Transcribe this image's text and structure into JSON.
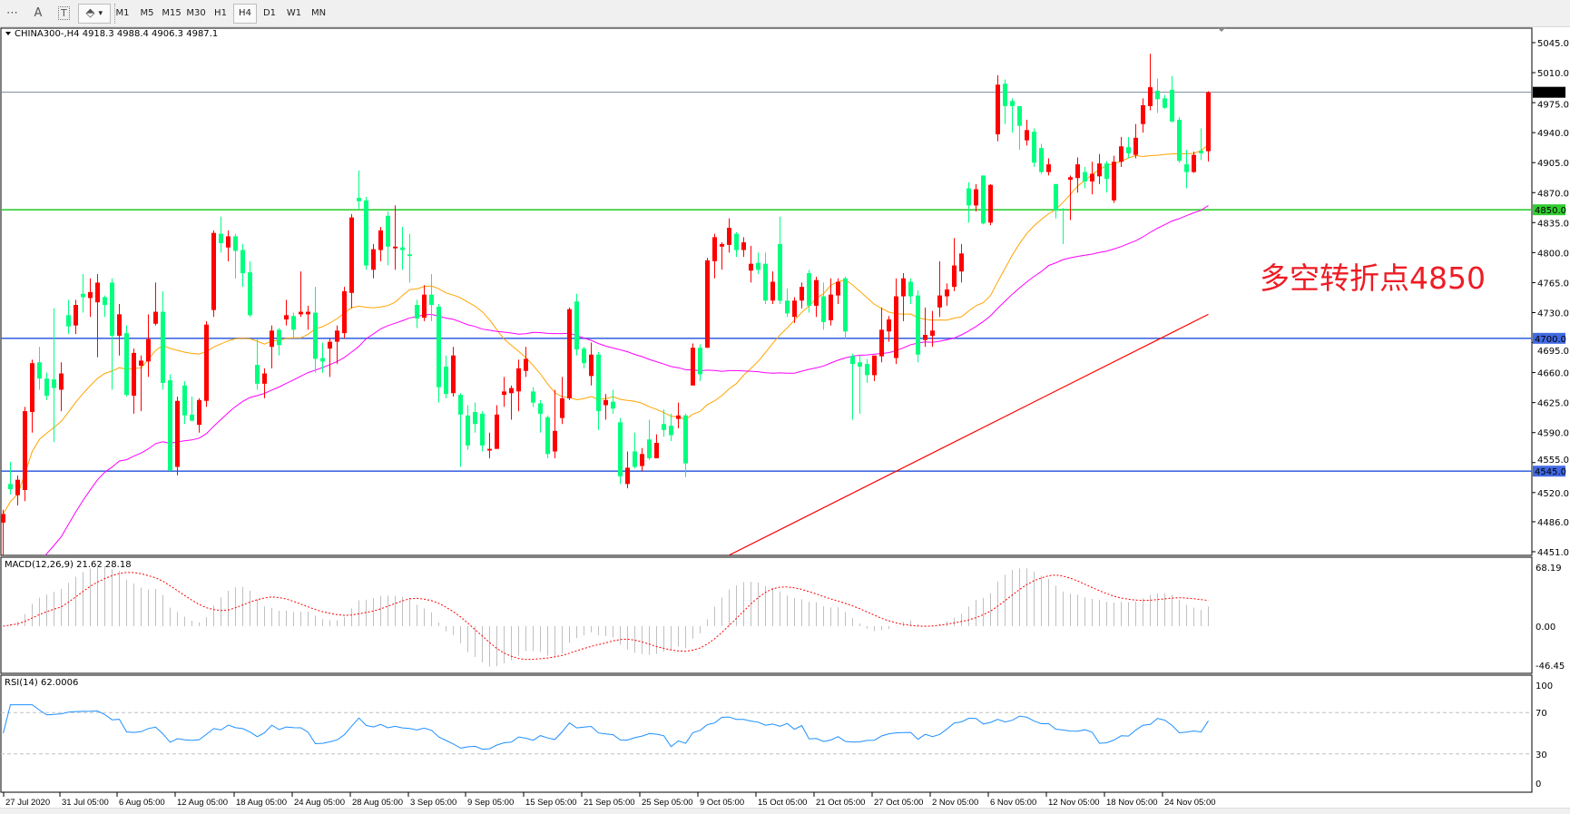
{
  "toolbar": {
    "tools": [
      {
        "icon": "grid-fibo-icon",
        "glyph": "⋯"
      },
      {
        "icon": "text-icon",
        "glyph": "A"
      },
      {
        "icon": "text-label-icon",
        "glyph": "T"
      },
      {
        "icon": "arrows-dropdown-icon",
        "glyph": "⬘"
      }
    ],
    "dropdown_glyph": "▾",
    "timeframes": [
      "M1",
      "M5",
      "M15",
      "M30",
      "H1",
      "H4",
      "D1",
      "W1",
      "MN"
    ],
    "active_timeframe": "H4"
  },
  "chart": {
    "header": "CHINA300-,H4  4918.3 4988.4 4906.3 4987.1",
    "macd_label": "MACD(12,26,9) 21.62 28.18",
    "rsi_label": "RSI(14) 62.0006",
    "annotation": "多空转折点4850"
  },
  "colors": {
    "bull": "#FF0000",
    "bear": "#00FF7F",
    "ma_fast": "#FFA500",
    "ma_mid": "#FF00FF",
    "ma_slow": "#FF0000",
    "rsi": "#1E90FF",
    "macd_hist": "#C0C0C0",
    "macd_signal": "#FF0000",
    "line_current": "#778899",
    "line_4850": "#32CD32",
    "line_blue": "#4169E1",
    "annotation": "#EE1C25"
  },
  "chart_data": {
    "type": "candlestick",
    "symbol": "CHINA300-",
    "timeframe": "H4",
    "price_axis_ticks": [
      5045.0,
      5010.0,
      4975.0,
      4940.0,
      4905.0,
      4870.0,
      4835.0,
      4800.0,
      4765.0,
      4730.0,
      4695.0,
      4660.0,
      4625.0,
      4590.0,
      4555.0,
      4520.0,
      4486.0,
      4451.0
    ],
    "price_range": [
      4451.0,
      5045.0
    ],
    "time_axis_labels": [
      "27 Jul 2020",
      "31 Jul 05:00",
      "6 Aug 05:00",
      "12 Aug 05:00",
      "18 Aug 05:00",
      "24 Aug 05:00",
      "28 Aug 05:00",
      "3 Sep 05:00",
      "9 Sep 05:00",
      "15 Sep 05:00",
      "21 Sep 05:00",
      "25 Sep 05:00",
      "9 Oct 05:00",
      "15 Oct 05:00",
      "21 Oct 05:00",
      "27 Oct 05:00",
      "2 Nov 05:00",
      "6 Nov 05:00",
      "12 Nov 05:00",
      "18 Nov 05:00",
      "24 Nov 05:00"
    ],
    "horizontal_lines": [
      {
        "price": 4987.1,
        "label": "4987.1",
        "color": "#778899",
        "label_bg": "#000000"
      },
      {
        "price": 4850.0,
        "label": "4850.0",
        "color": "#32CD32",
        "label_bg": "#32CD32"
      },
      {
        "price": 4700.0,
        "label": "4700.0",
        "color": "#4169E1",
        "label_bg": "#4169E1"
      },
      {
        "price": 4545.0,
        "label": "4545.0",
        "color": "#4169E1",
        "label_bg": "#4169E1"
      }
    ],
    "slow_ma_segment": {
      "from": [
        100,
        4447
      ],
      "to": [
        166,
        4728
      ]
    },
    "macd": {
      "params": "12,26,9",
      "main": 21.62,
      "signal": 28.18,
      "axis_ticks": [
        "68.19",
        "0.00",
        "-46.45"
      ],
      "range": [
        -46.45,
        68.19
      ]
    },
    "rsi": {
      "period": 14,
      "value": 62.0006,
      "axis_ticks": [
        "100",
        "70",
        "30",
        "0"
      ],
      "levels": [
        70,
        30
      ]
    },
    "ohlc": [
      [
        4485,
        4500,
        4440,
        4495
      ],
      [
        4530,
        4556,
        4518,
        4524
      ],
      [
        4517,
        4540,
        4505,
        4535
      ],
      [
        4523,
        4620,
        4510,
        4615
      ],
      [
        4614,
        4675,
        4590,
        4671
      ],
      [
        4672,
        4690,
        4640,
        4653
      ],
      [
        4653,
        4660,
        4628,
        4633
      ],
      [
        4652,
        4735,
        4579,
        4642
      ],
      [
        4640,
        4672,
        4615,
        4659
      ],
      [
        4727,
        4745,
        4705,
        4714
      ],
      [
        4715,
        4745,
        4705,
        4739
      ],
      [
        4752,
        4775,
        4730,
        4748
      ],
      [
        4747,
        4770,
        4725,
        4754
      ],
      [
        4742,
        4775,
        4678,
        4765
      ],
      [
        4748,
        4750,
        4725,
        4739
      ],
      [
        4765,
        4770,
        4640,
        4703
      ],
      [
        4703,
        4740,
        4680,
        4728
      ],
      [
        4706,
        4715,
        4632,
        4634
      ],
      [
        4633,
        4688,
        4612,
        4683
      ],
      [
        4668,
        4680,
        4615,
        4674
      ],
      [
        4673,
        4728,
        4655,
        4699
      ],
      [
        4717,
        4765,
        4715,
        4731
      ],
      [
        4731,
        4755,
        4640,
        4648
      ],
      [
        4651,
        4658,
        4545,
        4546
      ],
      [
        4550,
        4632,
        4540,
        4627
      ],
      [
        4645,
        4650,
        4600,
        4610
      ],
      [
        4611,
        4632,
        4603,
        4604
      ],
      [
        4599,
        4630,
        4590,
        4628
      ],
      [
        4627,
        4720,
        4620,
        4716
      ],
      [
        4733,
        4826,
        4725,
        4823
      ],
      [
        4822,
        4842,
        4800,
        4811
      ],
      [
        4806,
        4826,
        4790,
        4819
      ],
      [
        4819,
        4822,
        4770,
        4802
      ],
      [
        4803,
        4810,
        4760,
        4776
      ],
      [
        4777,
        4790,
        4725,
        4727
      ],
      [
        4669,
        4700,
        4640,
        4647
      ],
      [
        4647,
        4665,
        4630,
        4659
      ],
      [
        4690,
        4715,
        4665,
        4709
      ],
      [
        4710,
        4712,
        4680,
        4692
      ],
      [
        4722,
        4745,
        4715,
        4727
      ],
      [
        4726,
        4730,
        4700,
        4710
      ],
      [
        4728,
        4778,
        4725,
        4731
      ],
      [
        4728,
        4738,
        4710,
        4731
      ],
      [
        4730,
        4760,
        4660,
        4676
      ],
      [
        4677,
        4695,
        4660,
        4673
      ],
      [
        4688,
        4700,
        4655,
        4696
      ],
      [
        4696,
        4715,
        4670,
        4709
      ],
      [
        4706,
        4760,
        4700,
        4755
      ],
      [
        4753,
        4845,
        4735,
        4841
      ],
      [
        4864,
        4896,
        4850,
        4860
      ],
      [
        4861,
        4865,
        4780,
        4785
      ],
      [
        4780,
        4810,
        4770,
        4804
      ],
      [
        4803,
        4830,
        4790,
        4826
      ],
      [
        4843,
        4848,
        4785,
        4807
      ],
      [
        4805,
        4855,
        4780,
        4807
      ],
      [
        4806,
        4830,
        4780,
        4803
      ],
      [
        4798,
        4822,
        4765,
        4796
      ],
      [
        4739,
        4745,
        4712,
        4723
      ],
      [
        4724,
        4762,
        4720,
        4751
      ],
      [
        4751,
        4775,
        4720,
        4739
      ],
      [
        4737,
        4740,
        4625,
        4643
      ],
      [
        4667,
        4680,
        4630,
        4635
      ],
      [
        4636,
        4690,
        4632,
        4680
      ],
      [
        4634,
        4636,
        4550,
        4611
      ],
      [
        4610,
        4622,
        4570,
        4575
      ],
      [
        4614,
        4625,
        4590,
        4600
      ],
      [
        4612,
        4615,
        4568,
        4575
      ],
      [
        4569,
        4590,
        4560,
        4571
      ],
      [
        4571,
        4622,
        4571,
        4611
      ],
      [
        4634,
        4655,
        4620,
        4638
      ],
      [
        4636,
        4645,
        4605,
        4642
      ],
      [
        4638,
        4675,
        4615,
        4665
      ],
      [
        4662,
        4690,
        4655,
        4676
      ],
      [
        4638,
        4643,
        4620,
        4625
      ],
      [
        4624,
        4628,
        4590,
        4612
      ],
      [
        4608,
        4610,
        4560,
        4565
      ],
      [
        4568,
        4640,
        4560,
        4592
      ],
      [
        4607,
        4655,
        4600,
        4630
      ],
      [
        4630,
        4736,
        4628,
        4734
      ],
      [
        4743,
        4752,
        4680,
        4687
      ],
      [
        4688,
        4690,
        4665,
        4671
      ],
      [
        4656,
        4695,
        4645,
        4681
      ],
      [
        4681,
        4684,
        4593,
        4615
      ],
      [
        4622,
        4635,
        4605,
        4628
      ],
      [
        4626,
        4640,
        4612,
        4618
      ],
      [
        4602,
        4607,
        4530,
        4539
      ],
      [
        4530,
        4568,
        4525,
        4549
      ],
      [
        4568,
        4590,
        4548,
        4550
      ],
      [
        4551,
        4572,
        4545,
        4565
      ],
      [
        4582,
        4605,
        4558,
        4560
      ],
      [
        4560,
        4588,
        4560,
        4578
      ],
      [
        4600,
        4617,
        4585,
        4593
      ],
      [
        4598,
        4612,
        4580,
        4587
      ],
      [
        4606,
        4625,
        4595,
        4610
      ],
      [
        4610,
        4612,
        4538,
        4554
      ],
      [
        4645,
        4694,
        4645,
        4689
      ],
      [
        4689,
        4693,
        4650,
        4658
      ],
      [
        4689,
        4794,
        4689,
        4791
      ],
      [
        4790,
        4822,
        4770,
        4818
      ],
      [
        4807,
        4812,
        4780,
        4810
      ],
      [
        4809,
        4840,
        4800,
        4829
      ],
      [
        4822,
        4824,
        4795,
        4803
      ],
      [
        4803,
        4818,
        4795,
        4812
      ],
      [
        4779,
        4808,
        4765,
        4787
      ],
      [
        4788,
        4800,
        4775,
        4780
      ],
      [
        4787,
        4800,
        4740,
        4744
      ],
      [
        4744,
        4778,
        4740,
        4766
      ],
      [
        4810,
        4842,
        4740,
        4744
      ],
      [
        4744,
        4758,
        4725,
        4729
      ],
      [
        4725,
        4748,
        4718,
        4744
      ],
      [
        4744,
        4765,
        4735,
        4760
      ],
      [
        4776,
        4780,
        4730,
        4738
      ],
      [
        4738,
        4772,
        4725,
        4768
      ],
      [
        4749,
        4765,
        4710,
        4719
      ],
      [
        4721,
        4770,
        4715,
        4751
      ],
      [
        4750,
        4770,
        4740,
        4766
      ],
      [
        4770,
        4772,
        4700,
        4708
      ],
      [
        4679,
        4682,
        4605,
        4670
      ],
      [
        4672,
        4680,
        4612,
        4667
      ],
      [
        4670,
        4676,
        4648,
        4657
      ],
      [
        4657,
        4680,
        4650,
        4680
      ],
      [
        4679,
        4736,
        4672,
        4710
      ],
      [
        4708,
        4726,
        4696,
        4722
      ],
      [
        4677,
        4770,
        4670,
        4749
      ],
      [
        4749,
        4776,
        4720,
        4770
      ],
      [
        4766,
        4770,
        4740,
        4749
      ],
      [
        4750,
        4756,
        4672,
        4681
      ],
      [
        4698,
        4736,
        4690,
        4704
      ],
      [
        4703,
        4732,
        4690,
        4709
      ],
      [
        4736,
        4790,
        4725,
        4750
      ],
      [
        4749,
        4764,
        4738,
        4757
      ],
      [
        4760,
        4817,
        4755,
        4785
      ],
      [
        4778,
        4810,
        4765,
        4799
      ],
      [
        4875,
        4882,
        4835,
        4855
      ],
      [
        4855,
        4880,
        4848,
        4874
      ],
      [
        4890,
        4890,
        4833,
        4834
      ],
      [
        4835,
        4880,
        4832,
        4879
      ],
      [
        4938,
        5007,
        4930,
        4996
      ],
      [
        4997,
        5002,
        4950,
        4971
      ],
      [
        4977,
        4980,
        4940,
        4971
      ],
      [
        4971,
        4971,
        4920,
        4948
      ],
      [
        4931,
        4955,
        4925,
        4943
      ],
      [
        4941,
        4945,
        4900,
        4905
      ],
      [
        4922,
        4927,
        4892,
        4894
      ],
      [
        4894,
        4910,
        4890,
        4903
      ],
      [
        4880,
        4880,
        4840,
        4849
      ],
      [
        4851,
        4852,
        4810,
        4850
      ],
      [
        4885,
        4890,
        4838,
        4888
      ],
      [
        4887,
        4911,
        4870,
        4903
      ],
      [
        4894,
        4900,
        4875,
        4883
      ],
      [
        4883,
        4906,
        4868,
        4892
      ],
      [
        4889,
        4915,
        4880,
        4904
      ],
      [
        4904,
        4907,
        4870,
        4886
      ],
      [
        4861,
        4913,
        4858,
        4906
      ],
      [
        4906,
        4935,
        4900,
        4924
      ],
      [
        4923,
        4935,
        4910,
        4916
      ],
      [
        4914,
        4950,
        4910,
        4934
      ],
      [
        4950,
        4980,
        4940,
        4972
      ],
      [
        4971,
        5032,
        4966,
        4993
      ],
      [
        4989,
        5003,
        4963,
        4979
      ],
      [
        4980,
        4984,
        4968,
        4969
      ],
      [
        4990,
        5006,
        4952,
        4953
      ],
      [
        4955,
        4958,
        4905,
        4907
      ],
      [
        4903,
        4920,
        4875,
        4894
      ],
      [
        4894,
        4918,
        4893,
        4914
      ],
      [
        4919,
        4945,
        4908,
        4916
      ],
      [
        4918.3,
        4988.4,
        4906.3,
        4987.1
      ]
    ]
  }
}
